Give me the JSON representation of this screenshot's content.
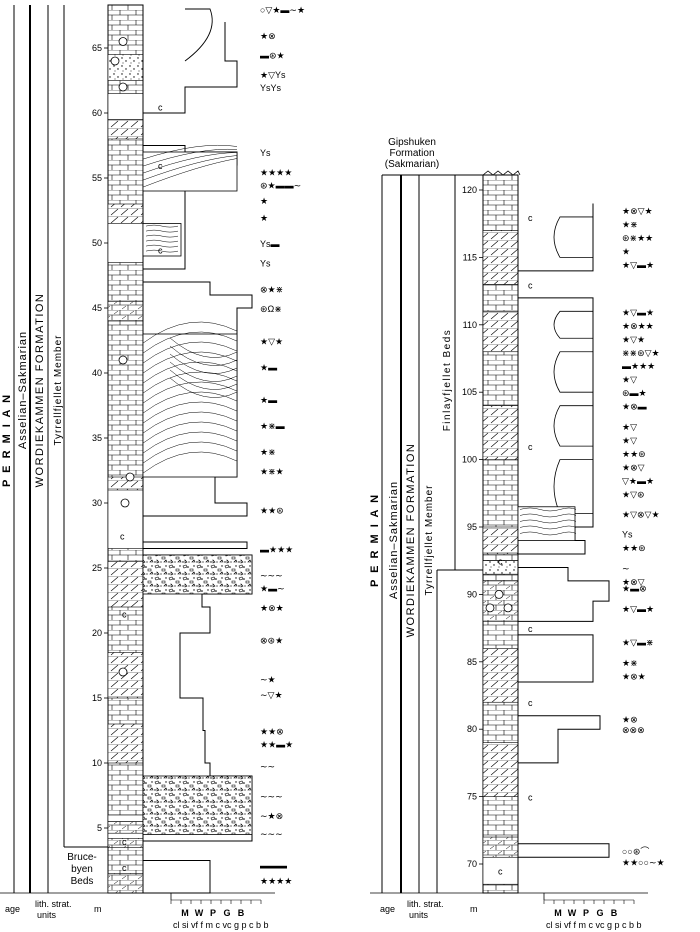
{
  "left_column": {
    "era": "P E R M I A N",
    "age": "Asselian–Sakmarian",
    "formation": "WORDIEKAMMEN FORMATION",
    "member": "Tyrrellfjellet Member",
    "lower_unit": [
      "Bruce-",
      "byen",
      "Beds"
    ],
    "depth_ticks": [
      "5",
      "10",
      "15",
      "20",
      "25",
      "30",
      "35",
      "40",
      "45",
      "50",
      "55",
      "60",
      "65"
    ],
    "c_marks": [
      "c",
      "c",
      "c",
      "c",
      "c",
      "c",
      "c",
      "c"
    ]
  },
  "right_column": {
    "top_unit": [
      "Gipshuken",
      "Formation",
      "(Sakmarian)"
    ],
    "era": "P E R M I A N",
    "age": "Asselian–Sakmarian",
    "formation": "WORDIEKAMMEN FORMATION",
    "member": "Tyrrellfjellet Member",
    "beds": "Finlayfjellet Beds",
    "depth_ticks": [
      "70",
      "75",
      "80",
      "85",
      "90",
      "95",
      "100",
      "105",
      "110",
      "115",
      "120"
    ],
    "c_marks": [
      "c",
      "c",
      "c",
      "c",
      "c",
      "c",
      "c",
      "c"
    ]
  },
  "footer": {
    "age": "age",
    "lith_strat": [
      "lith. strat.",
      "units"
    ],
    "m": "m",
    "grain_top": [
      "M",
      "W",
      "P",
      "G",
      "B"
    ],
    "grain_bottom": "cl si vf f m c vc g p c b b"
  }
}
